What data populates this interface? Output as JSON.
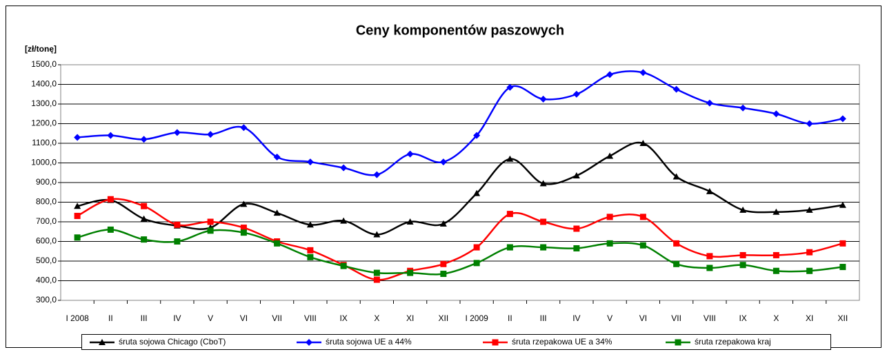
{
  "chart_data": {
    "type": "line",
    "title": "Ceny komponentów paszowych",
    "y_label": "[zł/tonę]",
    "categories": [
      "I 2008",
      "II",
      "III",
      "IV",
      "V",
      "VI",
      "VII",
      "VIII",
      "IX",
      "X",
      "XI",
      "XII",
      "I 2009",
      "II",
      "III",
      "IV",
      "V",
      "VI",
      "VII",
      "VIII",
      "IX",
      "X",
      "XI",
      "XII"
    ],
    "series": [
      {
        "name": "śruta sojowa Chicago (CboT)",
        "color": "#000000",
        "marker": "triangle",
        "values": [
          780,
          810,
          715,
          680,
          670,
          790,
          745,
          685,
          705,
          635,
          700,
          690,
          845,
          1020,
          895,
          935,
          1035,
          1100,
          930,
          855,
          760,
          750,
          760,
          785
        ]
      },
      {
        "name": "śruta sojowa UE a 44%",
        "color": "#0000ff",
        "marker": "diamond",
        "values": [
          1130,
          1140,
          1120,
          1155,
          1145,
          1180,
          1030,
          1005,
          975,
          940,
          1045,
          1005,
          1140,
          1385,
          1325,
          1350,
          1450,
          1460,
          1375,
          1305,
          1280,
          1250,
          1200,
          1225
        ]
      },
      {
        "name": "śruta rzepakowa UE a 34%",
        "color": "#ff0000",
        "marker": "square",
        "values": [
          730,
          815,
          780,
          685,
          700,
          670,
          600,
          555,
          480,
          405,
          450,
          485,
          570,
          740,
          700,
          665,
          725,
          725,
          590,
          525,
          530,
          530,
          545,
          590
        ]
      },
      {
        "name": "śruta rzepakowa kraj",
        "color": "#008000",
        "marker": "square",
        "values": [
          620,
          660,
          610,
          600,
          655,
          645,
          590,
          520,
          475,
          440,
          440,
          435,
          490,
          570,
          570,
          565,
          590,
          580,
          485,
          465,
          480,
          450,
          450,
          470
        ]
      }
    ],
    "ylim": [
      300,
      1500
    ],
    "yticks": [
      {
        "value": 300,
        "label": "300,0"
      },
      {
        "value": 400,
        "label": "400,0"
      },
      {
        "value": 500,
        "label": "500,0"
      },
      {
        "value": 600,
        "label": "600,0"
      },
      {
        "value": 700,
        "label": "700,0"
      },
      {
        "value": 800,
        "label": "800,0"
      },
      {
        "value": 900,
        "label": "900,0"
      },
      {
        "value": 1000,
        "label": "1000,0"
      },
      {
        "value": 1100,
        "label": "1100,0"
      },
      {
        "value": 1200,
        "label": "1200,0"
      },
      {
        "value": 1300,
        "label": "1300,0"
      },
      {
        "value": 1400,
        "label": "1400,0"
      },
      {
        "value": 1500,
        "label": "1500,0"
      }
    ],
    "grid": true,
    "legend": "bottom"
  }
}
